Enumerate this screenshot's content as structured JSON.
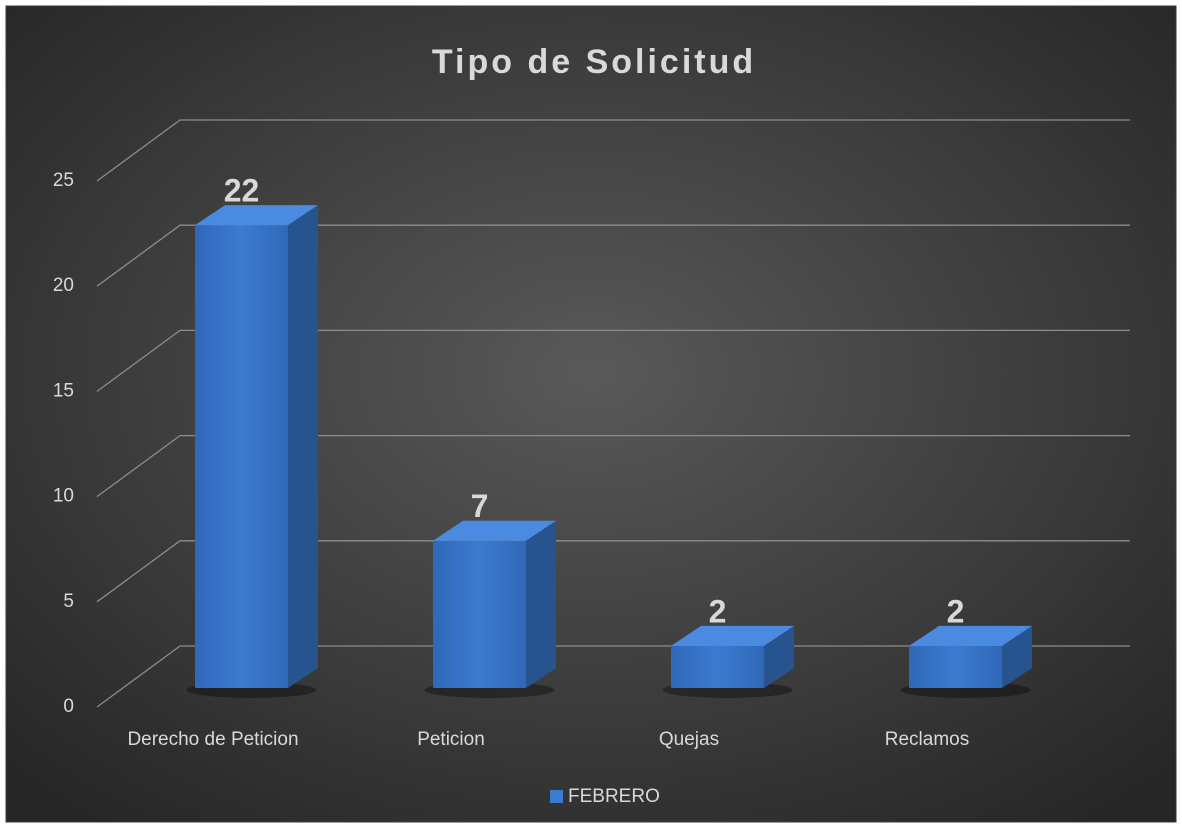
{
  "chart_data": {
    "type": "bar3d",
    "title": "Tipo de Solicitud",
    "categories": [
      "Derecho de Peticion",
      "Peticion",
      "Quejas",
      "Reclamos"
    ],
    "series": [
      {
        "name": "FEBRERO",
        "color": "#3b7bd0",
        "values": [
          22,
          7,
          2,
          2
        ]
      }
    ],
    "ylim": [
      0,
      25
    ],
    "yticks": [
      0,
      5,
      10,
      15,
      20,
      25
    ],
    "grid": true,
    "legend": "bottom"
  }
}
